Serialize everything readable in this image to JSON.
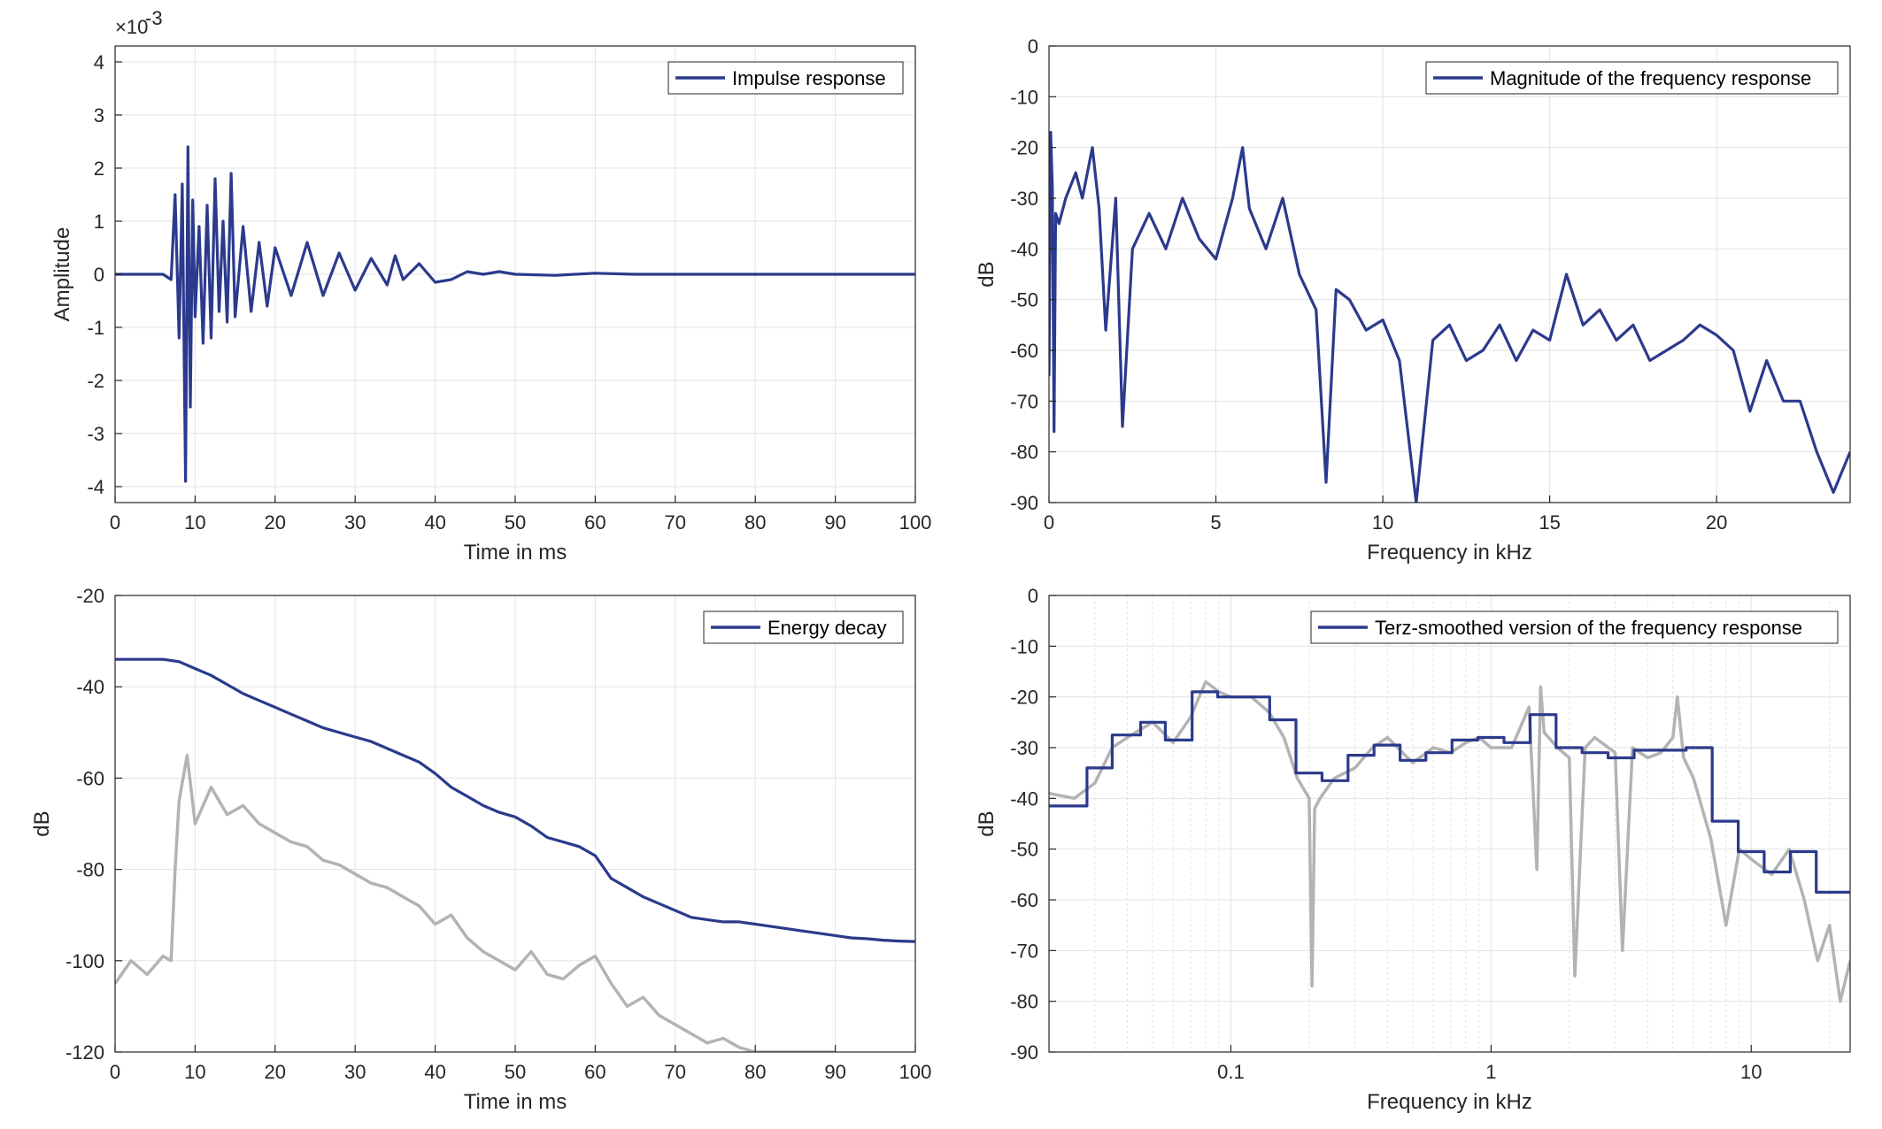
{
  "colors": {
    "series": "#2b3a8c",
    "gray": "#b3b3b3",
    "grid": "#e3e3e3",
    "axis": "#262626"
  },
  "chart_data": [
    {
      "id": "impulse",
      "type": "line",
      "xlabel": "Time in ms",
      "ylabel": "Amplitude",
      "xlim": [
        0,
        100
      ],
      "ylim": [
        -4.3,
        4.3
      ],
      "exponent_label": "×10",
      "exponent_power": "-3",
      "xticks": [
        0,
        10,
        20,
        30,
        40,
        50,
        60,
        70,
        80,
        90,
        100
      ],
      "yticks": [
        -4,
        -3,
        -2,
        -1,
        0,
        1,
        2,
        3,
        4
      ],
      "grid": true,
      "legend_position": "top-right",
      "series": [
        {
          "name": "Impulse response",
          "color": "#2b3a8c",
          "x": [
            0,
            6,
            7,
            7.5,
            8,
            8.4,
            8.8,
            9.1,
            9.4,
            9.7,
            10,
            10.5,
            11,
            11.5,
            12,
            12.5,
            13,
            13.5,
            14,
            14.5,
            15,
            16,
            17,
            18,
            19,
            20,
            22,
            24,
            26,
            28,
            30,
            32,
            34,
            35,
            36,
            38,
            40,
            42,
            44,
            46,
            48,
            50,
            55,
            60,
            65,
            70,
            80,
            100
          ],
          "y": [
            0,
            0,
            -0.1,
            1.5,
            -1.2,
            1.7,
            -3.9,
            2.4,
            -2.5,
            1.4,
            -0.8,
            0.9,
            -1.3,
            1.3,
            -1.2,
            1.8,
            -0.7,
            1.0,
            -0.9,
            1.9,
            -0.8,
            0.9,
            -0.7,
            0.6,
            -0.6,
            0.5,
            -0.4,
            0.6,
            -0.4,
            0.4,
            -0.3,
            0.3,
            -0.2,
            0.35,
            -0.1,
            0.2,
            -0.15,
            -0.1,
            0.05,
            0.0,
            0.05,
            0.0,
            -0.02,
            0.02,
            0.0,
            0.0,
            0.0,
            0.0
          ]
        }
      ]
    },
    {
      "id": "magnitude",
      "type": "line",
      "xlabel": "Frequency in kHz",
      "ylabel": "dB",
      "xlim": [
        0,
        24
      ],
      "ylim": [
        -90,
        0
      ],
      "xticks": [
        0,
        5,
        10,
        15,
        20
      ],
      "yticks": [
        0,
        -10,
        -20,
        -30,
        -40,
        -50,
        -60,
        -70,
        -80,
        -90
      ],
      "grid": true,
      "legend_position": "top-right",
      "series": [
        {
          "name": "Magnitude of the frequency response",
          "color": "#2b3a8c",
          "x": [
            0,
            0.05,
            0.1,
            0.15,
            0.2,
            0.3,
            0.5,
            0.8,
            1.0,
            1.3,
            1.5,
            1.7,
            2.0,
            2.2,
            2.5,
            3.0,
            3.5,
            4.0,
            4.5,
            5.0,
            5.5,
            5.8,
            6.0,
            6.5,
            7.0,
            7.5,
            8.0,
            8.3,
            8.6,
            9.0,
            9.5,
            10,
            10.5,
            11,
            11.5,
            12,
            12.5,
            13,
            13.5,
            14,
            14.5,
            15,
            15.5,
            16,
            16.5,
            17,
            17.5,
            18,
            18.5,
            19,
            19.5,
            20,
            20.5,
            21,
            21.5,
            22,
            22.5,
            23,
            23.5,
            24
          ],
          "y": [
            -65,
            -17,
            -28,
            -76,
            -33,
            -35,
            -30,
            -25,
            -30,
            -20,
            -32,
            -56,
            -30,
            -75,
            -40,
            -33,
            -40,
            -30,
            -38,
            -42,
            -30,
            -20,
            -32,
            -40,
            -30,
            -45,
            -52,
            -86,
            -48,
            -50,
            -56,
            -54,
            -62,
            -90,
            -58,
            -55,
            -62,
            -60,
            -55,
            -62,
            -56,
            -58,
            -45,
            -55,
            -52,
            -58,
            -55,
            -62,
            -60,
            -58,
            -55,
            -57,
            -60,
            -72,
            -62,
            -70,
            -70,
            -80,
            -88,
            -80
          ]
        }
      ]
    },
    {
      "id": "decay",
      "type": "line",
      "xlabel": "Time in ms",
      "ylabel": "dB",
      "xlim": [
        0,
        100
      ],
      "ylim": [
        -120,
        -20
      ],
      "xticks": [
        0,
        10,
        20,
        30,
        40,
        50,
        60,
        70,
        80,
        90,
        100
      ],
      "yticks": [
        -20,
        -40,
        -60,
        -80,
        -100,
        -120
      ],
      "grid": true,
      "legend_position": "top-right",
      "series": [
        {
          "name": "",
          "color": "#b3b3b3",
          "x": [
            0,
            2,
            4,
            6,
            7,
            7.5,
            8,
            9,
            10,
            12,
            14,
            16,
            18,
            20,
            22,
            24,
            26,
            28,
            30,
            32,
            34,
            36,
            38,
            40,
            42,
            44,
            46,
            48,
            50,
            52,
            54,
            56,
            58,
            60,
            62,
            64,
            66,
            68,
            70,
            72,
            74,
            76,
            78,
            80,
            85,
            90
          ],
          "y": [
            -105,
            -100,
            -103,
            -99,
            -100,
            -80,
            -65,
            -55,
            -70,
            -62,
            -68,
            -66,
            -70,
            -72,
            -74,
            -75,
            -78,
            -79,
            -81,
            -83,
            -84,
            -86,
            -88,
            -92,
            -90,
            -95,
            -98,
            -100,
            -102,
            -98,
            -103,
            -104,
            -101,
            -99,
            -105,
            -110,
            -108,
            -112,
            -114,
            -116,
            -118,
            -117,
            -119,
            -120,
            -120,
            -120
          ]
        },
        {
          "name": "Energy decay",
          "color": "#2b3a8c",
          "x": [
            0,
            2,
            4,
            6,
            8,
            10,
            12,
            14,
            16,
            18,
            20,
            22,
            24,
            26,
            28,
            30,
            32,
            34,
            36,
            38,
            40,
            42,
            44,
            46,
            48,
            50,
            52,
            54,
            56,
            58,
            60,
            62,
            64,
            66,
            68,
            70,
            72,
            74,
            76,
            78,
            80,
            82,
            84,
            86,
            88,
            90,
            92,
            94,
            96,
            98,
            100
          ],
          "y": [
            -34,
            -34,
            -34,
            -34,
            -34.5,
            -36,
            -37.5,
            -39.5,
            -41.5,
            -43,
            -44.5,
            -46,
            -47.5,
            -49,
            -50,
            -51,
            -52,
            -53.5,
            -55,
            -56.5,
            -59,
            -62,
            -64,
            -66,
            -67.5,
            -68.5,
            -70.5,
            -73,
            -74,
            -75,
            -77,
            -82,
            -84,
            -86,
            -87.5,
            -89,
            -90.5,
            -91,
            -91.5,
            -91.5,
            -92,
            -92.5,
            -93,
            -93.5,
            -94,
            -94.5,
            -95,
            -95.2,
            -95.5,
            -95.7,
            -95.8
          ]
        }
      ]
    },
    {
      "id": "terz",
      "type": "line",
      "xlabel": "Frequency in kHz",
      "ylabel": "dB",
      "xscale": "log",
      "xlim": [
        0.02,
        24
      ],
      "ylim": [
        -90,
        0
      ],
      "xticks": [
        0.1,
        1,
        10
      ],
      "xtick_labels": [
        "0.1",
        "1",
        "10"
      ],
      "yticks": [
        0,
        -10,
        -20,
        -30,
        -40,
        -50,
        -60,
        -70,
        -80,
        -90
      ],
      "grid": true,
      "legend_position": "top-right",
      "series": [
        {
          "name": "",
          "color": "#b3b3b3",
          "x": [
            0.02,
            0.025,
            0.03,
            0.035,
            0.04,
            0.05,
            0.06,
            0.07,
            0.08,
            0.09,
            0.1,
            0.12,
            0.14,
            0.16,
            0.18,
            0.2,
            0.205,
            0.21,
            0.22,
            0.25,
            0.3,
            0.35,
            0.4,
            0.5,
            0.6,
            0.7,
            0.8,
            0.9,
            1.0,
            1.2,
            1.4,
            1.5,
            1.55,
            1.6,
            1.8,
            2.0,
            2.1,
            2.3,
            2.5,
            3.0,
            3.2,
            3.5,
            4.0,
            4.5,
            5.0,
            5.2,
            5.5,
            6.0,
            7.0,
            8.0,
            9.0,
            10.0,
            12.0,
            14.0,
            16.0,
            18.0,
            20.0,
            22.0,
            24.0
          ],
          "y": [
            -39,
            -40,
            -37,
            -30,
            -28,
            -25,
            -29,
            -24,
            -17,
            -19,
            -20,
            -20,
            -23,
            -28,
            -36,
            -40,
            -77,
            -42,
            -40,
            -36,
            -34,
            -30,
            -28,
            -33,
            -30,
            -31,
            -29,
            -28,
            -30,
            -30,
            -22,
            -54,
            -18,
            -27,
            -30,
            -32,
            -75,
            -30,
            -28,
            -31,
            -70,
            -30,
            -32,
            -31,
            -28,
            -20,
            -32,
            -36,
            -48,
            -65,
            -50,
            -52,
            -55,
            -50,
            -60,
            -72,
            -65,
            -80,
            -72
          ]
        },
        {
          "name": "Terz-smoothed version of the frequency response",
          "color": "#2b3a8c",
          "step": true,
          "x": [
            0.02,
            0.028,
            0.035,
            0.045,
            0.056,
            0.071,
            0.089,
            0.112,
            0.141,
            0.178,
            0.224,
            0.282,
            0.355,
            0.447,
            0.562,
            0.708,
            0.891,
            1.122,
            1.413,
            1.778,
            2.239,
            2.818,
            3.548,
            4.467,
            5.623,
            7.079,
            8.913,
            11.22,
            14.13,
            17.78,
            24
          ],
          "y": [
            -41.5,
            -34,
            -27.5,
            -25,
            -28.5,
            -19,
            -20,
            -20,
            -24.5,
            -35,
            -36.5,
            -31.5,
            -29.5,
            -32.5,
            -31,
            -28.5,
            -28,
            -29,
            -23.5,
            -30,
            -31,
            -32,
            -30.5,
            -30.5,
            -30,
            -44.5,
            -50.5,
            -54.5,
            -50.5,
            -58.5,
            -58.5
          ]
        }
      ]
    }
  ]
}
